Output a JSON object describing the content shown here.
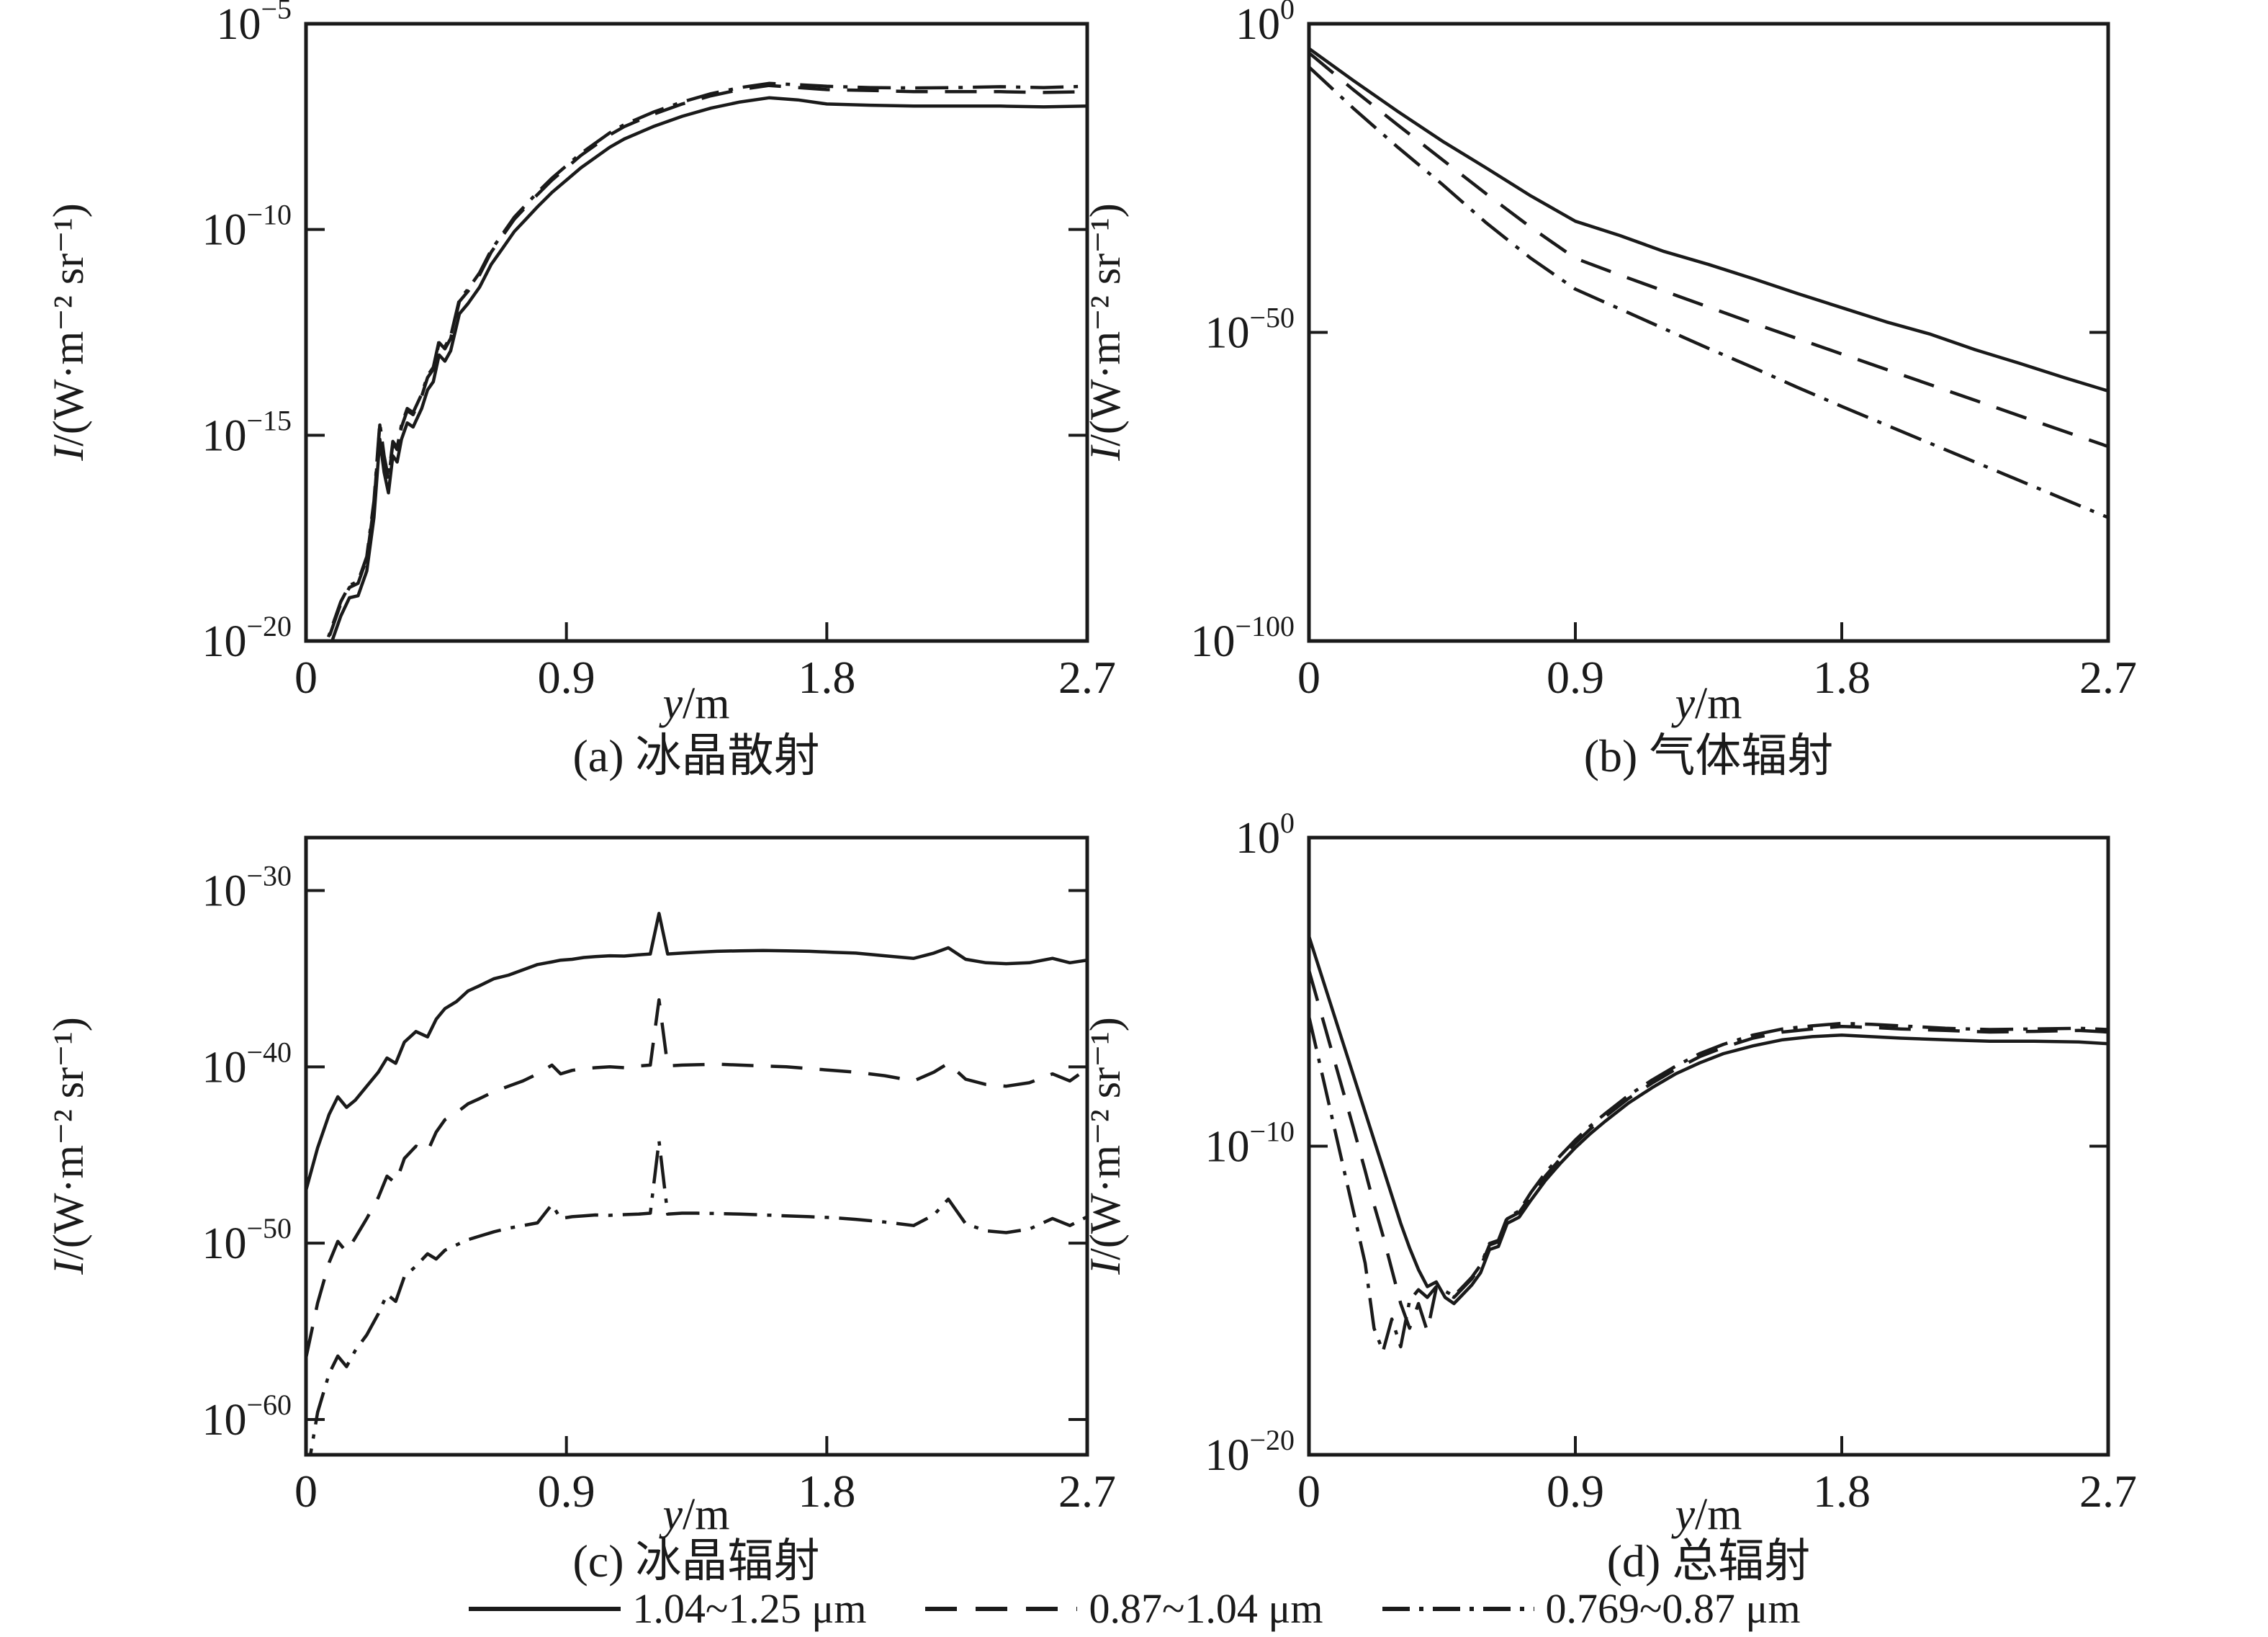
{
  "figure": {
    "background": "#ffffff",
    "ink_color": "#1a1a1a",
    "x_axis": {
      "label_italic": "y",
      "label_unit": "/m",
      "ticks": [
        0,
        0.9,
        1.8,
        2.7
      ],
      "min": 0,
      "max": 2.7
    },
    "y_axis": {
      "label_italic": "I",
      "label_unit": "/(W·m⁻² sr⁻¹)"
    },
    "legend": [
      {
        "name": "band-1",
        "style": "solid",
        "label": "1.04~1.25 μm"
      },
      {
        "name": "band-2",
        "style": "dashed",
        "label": "0.87~1.04 μm"
      },
      {
        "name": "band-3",
        "style": "dashdot",
        "label": "0.769~0.87 μm"
      }
    ]
  },
  "chart_data": [
    {
      "id": "a",
      "type": "line",
      "title": "(a) 冰晶散射",
      "xlabel": "y/m",
      "ylabel": "I/(W·m⁻² sr⁻¹)",
      "y_scale": "log10",
      "xlim": [
        0,
        2.7
      ],
      "x_ticks": [
        0,
        0.9,
        1.8,
        2.7
      ],
      "ylim_exponents": [
        -20,
        -5
      ],
      "y_tick_exponents": [
        -5,
        -10,
        -15,
        -20
      ],
      "x": [
        0.03,
        0.06,
        0.09,
        0.12,
        0.15,
        0.18,
        0.21,
        0.235,
        0.255,
        0.27,
        0.285,
        0.3,
        0.315,
        0.33,
        0.35,
        0.37,
        0.4,
        0.42,
        0.44,
        0.46,
        0.48,
        0.5,
        0.53,
        0.56,
        0.6,
        0.64,
        0.68,
        0.72,
        0.76,
        0.8,
        0.85,
        0.9,
        0.95,
        1.0,
        1.05,
        1.1,
        1.2,
        1.3,
        1.4,
        1.5,
        1.6,
        1.7,
        1.8,
        1.95,
        2.1,
        2.25,
        2.4,
        2.55,
        2.7
      ],
      "series": [
        {
          "name": "1.04~1.25 μm",
          "style": "solid",
          "log10_I": [
            -21.3,
            -20.6,
            -20.0,
            -19.4,
            -18.95,
            -18.9,
            -18.3,
            -17.0,
            -15.1,
            -15.9,
            -16.4,
            -15.5,
            -15.65,
            -15.1,
            -14.7,
            -14.8,
            -14.35,
            -13.9,
            -13.7,
            -13.05,
            -13.2,
            -12.95,
            -12.05,
            -11.8,
            -11.4,
            -10.85,
            -10.45,
            -10.05,
            -9.75,
            -9.45,
            -9.1,
            -8.8,
            -8.5,
            -8.25,
            -8.0,
            -7.8,
            -7.5,
            -7.25,
            -7.05,
            -6.9,
            -6.8,
            -6.85,
            -6.95,
            -6.98,
            -7.0,
            -7.0,
            -7.0,
            -7.02,
            -7.0
          ]
        },
        {
          "name": "0.87~1.04 μm",
          "style": "dashed",
          "log10_I": [
            -21.0,
            -20.3,
            -19.7,
            -19.1,
            -18.7,
            -18.6,
            -18.0,
            -16.7,
            -14.75,
            -15.6,
            -16.1,
            -15.2,
            -15.35,
            -14.8,
            -14.4,
            -14.5,
            -14.05,
            -13.6,
            -13.4,
            -12.75,
            -12.9,
            -12.65,
            -11.75,
            -11.5,
            -11.1,
            -10.55,
            -10.15,
            -9.75,
            -9.45,
            -9.15,
            -8.8,
            -8.5,
            -8.2,
            -7.95,
            -7.7,
            -7.5,
            -7.2,
            -6.95,
            -6.75,
            -6.6,
            -6.5,
            -6.55,
            -6.6,
            -6.62,
            -6.65,
            -6.65,
            -6.65,
            -6.67,
            -6.65
          ]
        },
        {
          "name": "0.769~0.87 μm",
          "style": "dashdot",
          "log10_I": [
            -20.9,
            -20.25,
            -19.65,
            -19.05,
            -18.65,
            -18.55,
            -17.95,
            -16.6,
            -14.7,
            -15.5,
            -16.05,
            -15.15,
            -15.3,
            -14.75,
            -14.35,
            -14.45,
            -14.0,
            -13.55,
            -13.35,
            -12.7,
            -12.85,
            -12.6,
            -11.7,
            -11.45,
            -11.05,
            -10.5,
            -10.1,
            -9.7,
            -9.4,
            -9.1,
            -8.75,
            -8.45,
            -8.15,
            -7.9,
            -7.65,
            -7.45,
            -7.15,
            -6.9,
            -6.7,
            -6.55,
            -6.45,
            -6.48,
            -6.52,
            -6.55,
            -6.56,
            -6.55,
            -6.53,
            -6.55,
            -6.52
          ]
        }
      ]
    },
    {
      "id": "b",
      "type": "line",
      "title": "(b) 气体辐射",
      "xlabel": "y/m",
      "ylabel": "I/(W·m⁻² sr⁻¹)",
      "y_scale": "log10",
      "xlim": [
        0,
        2.7
      ],
      "x_ticks": [
        0,
        0.9,
        1.8,
        2.7
      ],
      "ylim_exponents": [
        -100,
        0
      ],
      "y_tick_exponents": [
        0,
        -50,
        -100
      ],
      "x": [
        0,
        0.15,
        0.3,
        0.45,
        0.6,
        0.75,
        0.9,
        1.05,
        1.2,
        1.35,
        1.5,
        1.65,
        1.8,
        1.95,
        2.1,
        2.25,
        2.4,
        2.55,
        2.7
      ],
      "series": [
        {
          "name": "1.04~1.25 μm",
          "style": "solid",
          "log10_I": [
            -4.0,
            -9.2,
            -14.2,
            -19.0,
            -23.4,
            -27.9,
            -32.0,
            -34.3,
            -36.9,
            -39.0,
            -41.3,
            -43.7,
            -46.0,
            -48.3,
            -50.3,
            -52.8,
            -55.0,
            -57.3,
            -59.5
          ]
        },
        {
          "name": "0.87~1.04 μm",
          "style": "dashed",
          "log10_I": [
            -4.7,
            -10.7,
            -16.4,
            -22.0,
            -27.6,
            -33.0,
            -38.0,
            -40.7,
            -43.3,
            -45.9,
            -48.5,
            -51.0,
            -53.5,
            -56.0,
            -58.5,
            -61.0,
            -63.5,
            -66.0,
            -68.5
          ]
        },
        {
          "name": "0.769~0.87 μm",
          "style": "dashdot",
          "log10_I": [
            -7.0,
            -13.7,
            -20.0,
            -26.0,
            -32.3,
            -38.0,
            -43.0,
            -46.2,
            -49.4,
            -52.6,
            -55.7,
            -58.9,
            -62.0,
            -65.0,
            -68.0,
            -71.0,
            -74.0,
            -77.0,
            -80.0
          ]
        }
      ]
    },
    {
      "id": "c",
      "type": "line",
      "title": "(c) 冰晶辐射",
      "xlabel": "y/m",
      "ylabel": "I/(W·m⁻² sr⁻¹)",
      "y_scale": "log10",
      "xlim": [
        0,
        2.7
      ],
      "x_ticks": [
        0,
        0.9,
        1.8,
        2.7
      ],
      "ylim_exponents": [
        -62,
        -27
      ],
      "y_tick_exponents": [
        -30,
        -40,
        -50,
        -60
      ],
      "x": [
        0,
        0.04,
        0.08,
        0.11,
        0.14,
        0.17,
        0.21,
        0.25,
        0.28,
        0.31,
        0.34,
        0.38,
        0.42,
        0.45,
        0.48,
        0.52,
        0.56,
        0.6,
        0.65,
        0.7,
        0.75,
        0.8,
        0.85,
        0.88,
        0.92,
        0.96,
        1.0,
        1.05,
        1.1,
        1.15,
        1.19,
        1.22,
        1.25,
        1.3,
        1.35,
        1.42,
        1.5,
        1.58,
        1.66,
        1.74,
        1.82,
        1.9,
        2.0,
        2.1,
        2.17,
        2.22,
        2.28,
        2.35,
        2.42,
        2.5,
        2.58,
        2.64,
        2.7
      ],
      "series": [
        {
          "name": "1.04~1.25 μm",
          "style": "solid",
          "log10_I": [
            -47.0,
            -44.6,
            -42.7,
            -41.7,
            -42.3,
            -41.9,
            -41.1,
            -40.3,
            -39.5,
            -39.8,
            -38.6,
            -38.0,
            -38.3,
            -37.3,
            -36.7,
            -36.3,
            -35.7,
            -35.4,
            -35.0,
            -34.8,
            -34.5,
            -34.2,
            -34.05,
            -33.95,
            -33.9,
            -33.8,
            -33.75,
            -33.7,
            -33.72,
            -33.65,
            -33.6,
            -31.3,
            -33.6,
            -33.55,
            -33.5,
            -33.45,
            -33.42,
            -33.4,
            -33.42,
            -33.45,
            -33.5,
            -33.55,
            -33.7,
            -33.85,
            -33.55,
            -33.25,
            -33.9,
            -34.1,
            -34.15,
            -34.1,
            -33.85,
            -34.1,
            -33.95
          ]
        },
        {
          "name": "0.87~1.04 μm",
          "style": "dashed",
          "log10_I": [
            -56.5,
            -53.4,
            -51.1,
            -49.9,
            -50.5,
            -49.7,
            -48.6,
            -47.4,
            -46.2,
            -46.6,
            -45.2,
            -44.5,
            -44.8,
            -43.7,
            -43.0,
            -42.6,
            -42.1,
            -41.8,
            -41.4,
            -41.1,
            -40.8,
            -40.4,
            -39.9,
            -40.4,
            -40.2,
            -40.1,
            -40.05,
            -40.0,
            -40.05,
            -39.95,
            -39.9,
            -36.2,
            -39.95,
            -39.9,
            -39.88,
            -39.85,
            -39.9,
            -39.95,
            -40.0,
            -40.1,
            -40.2,
            -40.3,
            -40.5,
            -40.8,
            -40.3,
            -39.8,
            -40.7,
            -41.0,
            -41.1,
            -40.9,
            -40.4,
            -40.8,
            -40.1
          ]
        },
        {
          "name": "0.769~0.87 μm",
          "style": "dashdot",
          "log10_I": [
            -63.5,
            -59.6,
            -57.4,
            -56.4,
            -57.0,
            -56.1,
            -55.2,
            -54.0,
            -52.9,
            -53.3,
            -51.9,
            -51.3,
            -50.6,
            -50.9,
            -50.4,
            -50.1,
            -49.8,
            -49.6,
            -49.35,
            -49.15,
            -49.0,
            -48.85,
            -47.8,
            -48.6,
            -48.5,
            -48.45,
            -48.4,
            -48.42,
            -48.38,
            -48.35,
            -48.3,
            -44.2,
            -48.35,
            -48.3,
            -48.3,
            -48.32,
            -48.35,
            -48.4,
            -48.45,
            -48.5,
            -48.55,
            -48.65,
            -48.8,
            -49.0,
            -48.4,
            -47.5,
            -48.9,
            -49.3,
            -49.4,
            -49.2,
            -48.6,
            -49.0,
            -48.5
          ]
        }
      ]
    },
    {
      "id": "d",
      "type": "line",
      "title": "(d) 总辐射",
      "xlabel": "y/m",
      "ylabel": "I/(W·m⁻² sr⁻¹)",
      "y_scale": "log10",
      "xlim": [
        0,
        2.7
      ],
      "x_ticks": [
        0,
        0.9,
        1.8,
        2.7
      ],
      "ylim_exponents": [
        -20,
        0
      ],
      "y_tick_exponents": [
        0,
        -10,
        -20
      ],
      "x": [
        0,
        0.05,
        0.1,
        0.15,
        0.19,
        0.22,
        0.25,
        0.28,
        0.31,
        0.34,
        0.37,
        0.4,
        0.43,
        0.46,
        0.49,
        0.52,
        0.55,
        0.58,
        0.61,
        0.64,
        0.67,
        0.71,
        0.75,
        0.8,
        0.85,
        0.9,
        0.95,
        1.0,
        1.08,
        1.16,
        1.24,
        1.32,
        1.4,
        1.5,
        1.6,
        1.7,
        1.8,
        1.9,
        2.0,
        2.15,
        2.3,
        2.45,
        2.6,
        2.7
      ],
      "series": [
        {
          "name": "1.04~1.25 μm",
          "style": "solid",
          "log10_I": [
            -3.2,
            -4.7,
            -6.2,
            -7.7,
            -8.9,
            -9.8,
            -10.7,
            -11.6,
            -12.5,
            -13.3,
            -14.0,
            -14.55,
            -14.4,
            -14.9,
            -15.1,
            -14.8,
            -14.5,
            -14.1,
            -13.35,
            -13.25,
            -12.5,
            -12.3,
            -11.75,
            -11.1,
            -10.55,
            -10.05,
            -9.6,
            -9.2,
            -8.6,
            -8.1,
            -7.65,
            -7.3,
            -7.0,
            -6.75,
            -6.55,
            -6.45,
            -6.4,
            -6.45,
            -6.5,
            -6.55,
            -6.6,
            -6.6,
            -6.62,
            -6.68
          ]
        },
        {
          "name": "0.87~1.04 μm",
          "style": "dashed",
          "log10_I": [
            -4.3,
            -6.0,
            -7.7,
            -9.4,
            -10.8,
            -11.9,
            -12.9,
            -14.0,
            -15.1,
            -15.9,
            -15.1,
            -16.0,
            -14.6,
            -14.75,
            -14.9,
            -14.6,
            -14.3,
            -13.9,
            -13.2,
            -13.1,
            -12.35,
            -12.15,
            -11.6,
            -10.95,
            -10.4,
            -9.9,
            -9.45,
            -9.05,
            -8.45,
            -7.95,
            -7.5,
            -7.1,
            -6.8,
            -6.5,
            -6.3,
            -6.2,
            -6.12,
            -6.15,
            -6.2,
            -6.25,
            -6.3,
            -6.28,
            -6.25,
            -6.3
          ]
        },
        {
          "name": "0.769~0.87 μm",
          "style": "dashdot",
          "log10_I": [
            -5.8,
            -7.9,
            -10.0,
            -12.1,
            -13.8,
            -15.9,
            -16.65,
            -15.6,
            -16.5,
            -15.0,
            -14.65,
            -14.9,
            -14.55,
            -14.7,
            -14.85,
            -14.55,
            -14.25,
            -13.85,
            -13.15,
            -13.05,
            -12.3,
            -12.1,
            -11.5,
            -10.85,
            -10.3,
            -9.8,
            -9.35,
            -8.95,
            -8.35,
            -7.85,
            -7.4,
            -7.0,
            -6.7,
            -6.4,
            -6.2,
            -6.1,
            -6.02,
            -6.05,
            -6.1,
            -6.18,
            -6.22,
            -6.2,
            -6.18,
            -6.22
          ]
        }
      ]
    }
  ]
}
